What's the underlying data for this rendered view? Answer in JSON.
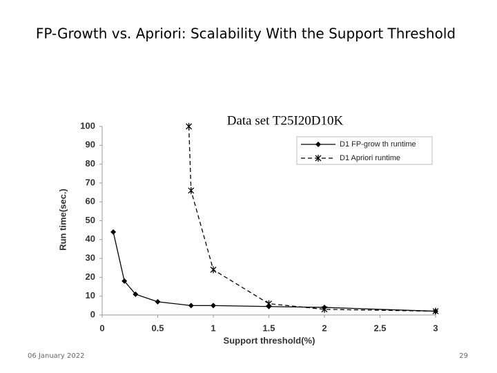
{
  "slide": {
    "title": "FP-Growth vs. Apriori: Scalability With the Support Threshold",
    "date": "06 January 2022",
    "page_number": "29"
  },
  "chart_data": {
    "type": "line",
    "title": "Data set T25I20D10K",
    "x_label": "Support threshold(%)",
    "y_label": "Run time(sec.)",
    "xlim": [
      0,
      3
    ],
    "xticks": [
      0,
      0.5,
      1,
      1.5,
      2,
      2.5,
      3
    ],
    "ylim": [
      0,
      100
    ],
    "yticks": [
      0,
      10,
      20,
      30,
      40,
      50,
      60,
      70,
      80,
      90,
      100
    ],
    "legend": "upper right",
    "series": [
      {
        "name": "D1 FP-grow th runtime",
        "color": "#000000",
        "dash": false,
        "marker": "diamond",
        "x": [
          0.1,
          0.2,
          0.3,
          0.5,
          0.8,
          1,
          1.5,
          2,
          3
        ],
        "values": [
          44,
          18,
          11,
          7,
          5,
          5,
          4.5,
          4,
          2
        ]
      },
      {
        "name": "D1 Apriori runtime",
        "color": "#000000",
        "dash": true,
        "marker": "star",
        "x": [
          0.78,
          0.8,
          1,
          1.5,
          2,
          3
        ],
        "values": [
          100,
          66,
          24,
          6,
          3,
          2
        ]
      }
    ]
  }
}
